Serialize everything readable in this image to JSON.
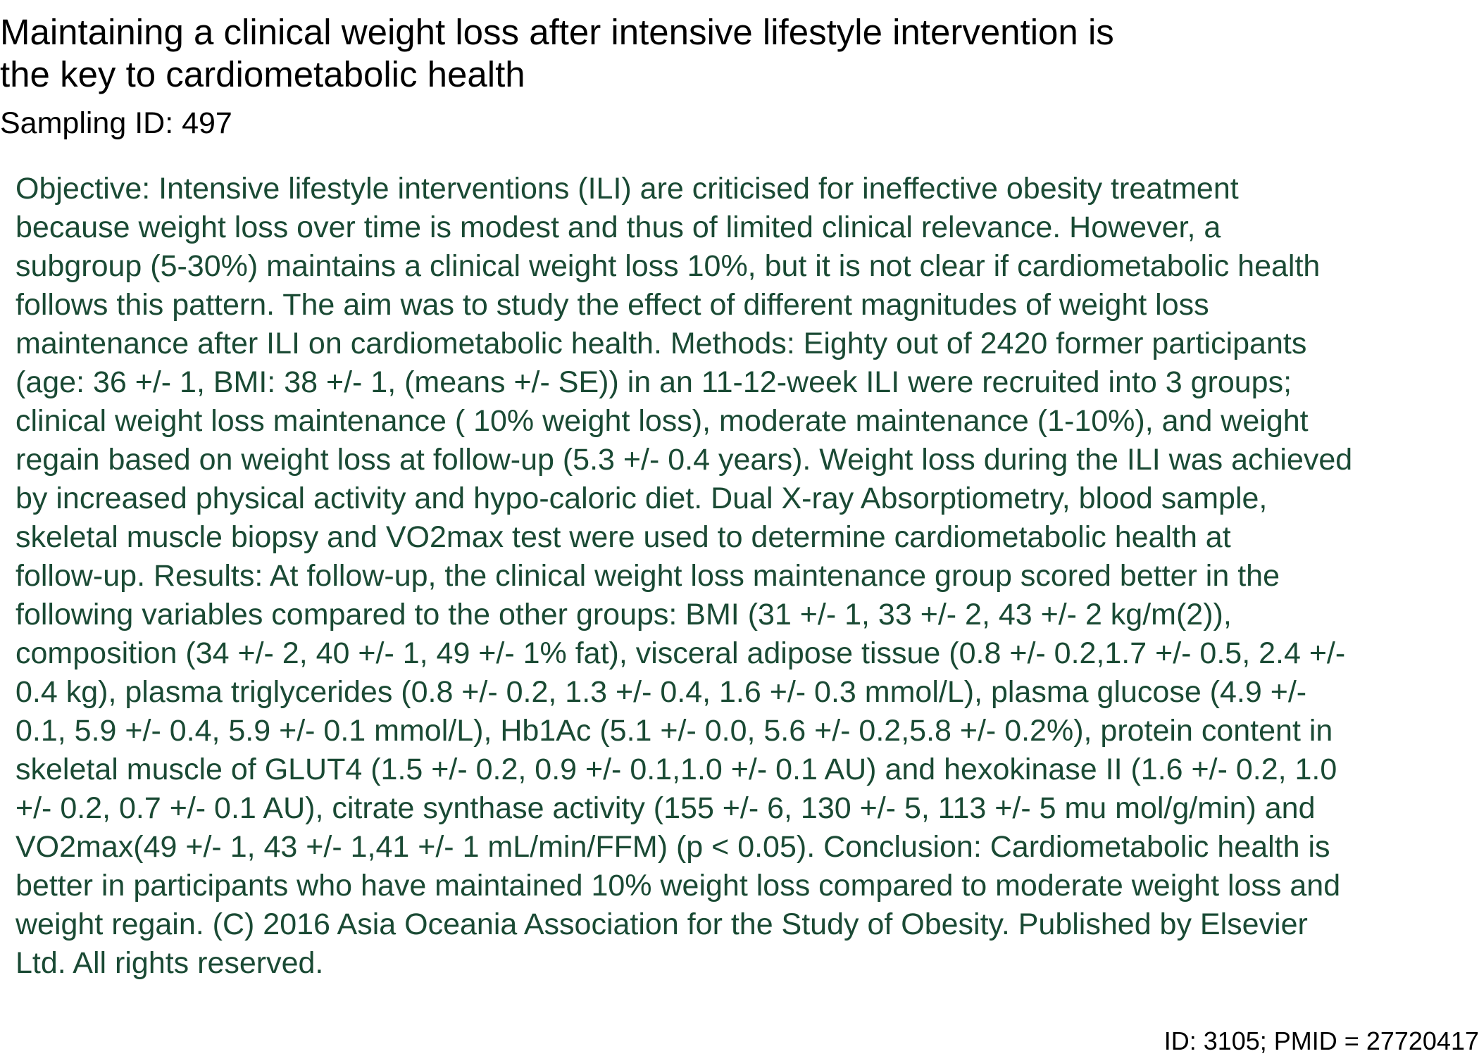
{
  "title_lines": [
    "Maintaining a clinical weight loss after intensive lifestyle intervention is",
    "the key to cardiometabolic health"
  ],
  "sampling_id": "Sampling ID: 497",
  "abstract_lines": [
    "Objective: Intensive lifestyle interventions (ILI) are criticised for ineffective obesity treatment",
    "because weight loss over time is modest and thus of limited clinical relevance. However, a",
    "subgroup (5-30%) maintains a clinical weight loss 10%, but it is not clear if cardiometabolic health",
    "follows this pattern. The aim was to study the effect of different magnitudes of weight loss",
    "maintenance after ILI on cardiometabolic health. Methods: Eighty out of 2420 former participants",
    "(age: 36 +/- 1, BMI: 38 +/- 1, (means +/- SE)) in an 11-12-week ILI were recruited into 3 groups;",
    "clinical weight loss maintenance ( 10% weight loss), moderate maintenance (1-10%), and weight",
    "regain based on weight loss at follow-up (5.3 +/- 0.4 years). Weight loss during the ILI was achieved",
    "by increased physical activity and hypo-caloric diet. Dual X-ray Absorptiometry, blood sample,",
    "skeletal muscle biopsy and VO2max test were used to determine cardiometabolic health at",
    "follow-up. Results: At follow-up, the clinical weight loss maintenance group scored better in the",
    "following variables compared to the other groups: BMI (31 +/- 1, 33 +/- 2, 43 +/- 2 kg/m(2)),",
    "composition (34 +/- 2, 40 +/- 1, 49 +/- 1% fat), visceral adipose tissue (0.8 +/- 0.2,1.7 +/- 0.5, 2.4 +/-",
    "0.4 kg), plasma triglycerides (0.8 +/- 0.2, 1.3 +/- 0.4, 1.6 +/- 0.3 mmol/L), plasma glucose (4.9 +/-",
    "0.1, 5.9 +/- 0.4, 5.9 +/- 0.1 mmol/L), Hb1Ac (5.1 +/- 0.0, 5.6 +/- 0.2,5.8 +/- 0.2%), protein content in",
    "skeletal muscle of GLUT4 (1.5 +/- 0.2, 0.9 +/- 0.1,1.0 +/- 0.1 AU) and hexokinase II (1.6 +/- 0.2, 1.0",
    "+/- 0.2, 0.7 +/- 0.1 AU), citrate synthase activity (155 +/- 6, 130 +/- 5, 113 +/- 5 mu mol/g/min) and",
    "VO2max(49 +/- 1, 43 +/- 1,41 +/- 1 mL/min/FFM) (p < 0.05). Conclusion: Cardiometabolic health is",
    "better in participants who have maintained 10% weight loss compared to moderate weight loss and",
    "weight regain. (C) 2016 Asia Oceania Association for the Study of Obesity. Published by Elsevier",
    "Ltd. All rights reserved."
  ],
  "footer_id": "ID: 3105; PMID = 27720417",
  "colors": {
    "abstract_text": "#1a4a34",
    "title_text": "#000000",
    "background": "#ffffff"
  }
}
